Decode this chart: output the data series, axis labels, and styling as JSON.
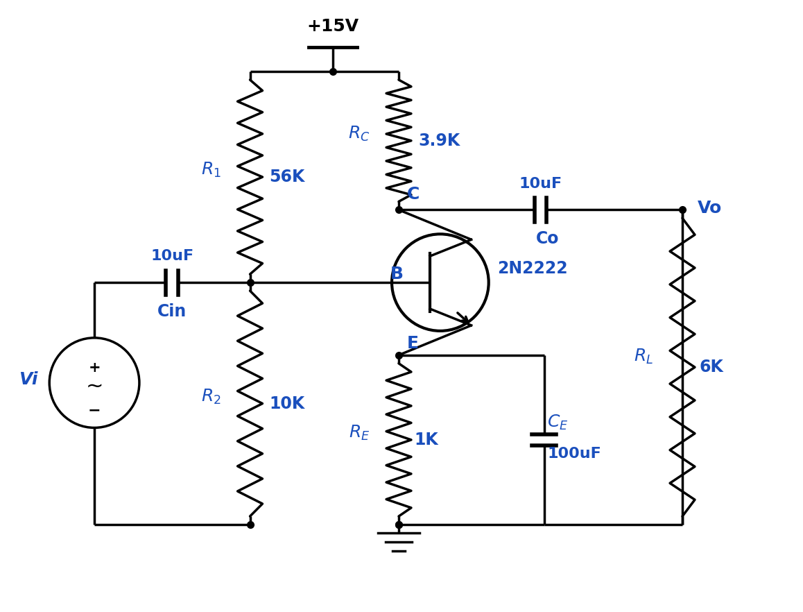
{
  "background_color": "#ffffff",
  "line_color": "#000000",
  "text_color": "#1a4fbd",
  "line_width": 2.5,
  "font_size": 16,
  "vcc_label": "+15V",
  "r1_val": "56K",
  "r2_val": "10K",
  "rc_val": "3.9K",
  "re_val": "1K",
  "rl_val": "6K",
  "cin_val": "10uF",
  "co_val": "10uF",
  "ce_val": "100uF",
  "transistor_label": "2N2222",
  "b_label": "B",
  "c_label": "C",
  "e_label": "E",
  "vi_label": "Vi",
  "vo_label": "Vo",
  "xlim": [
    0,
    11.58
  ],
  "ylim": [
    0,
    8.82
  ]
}
